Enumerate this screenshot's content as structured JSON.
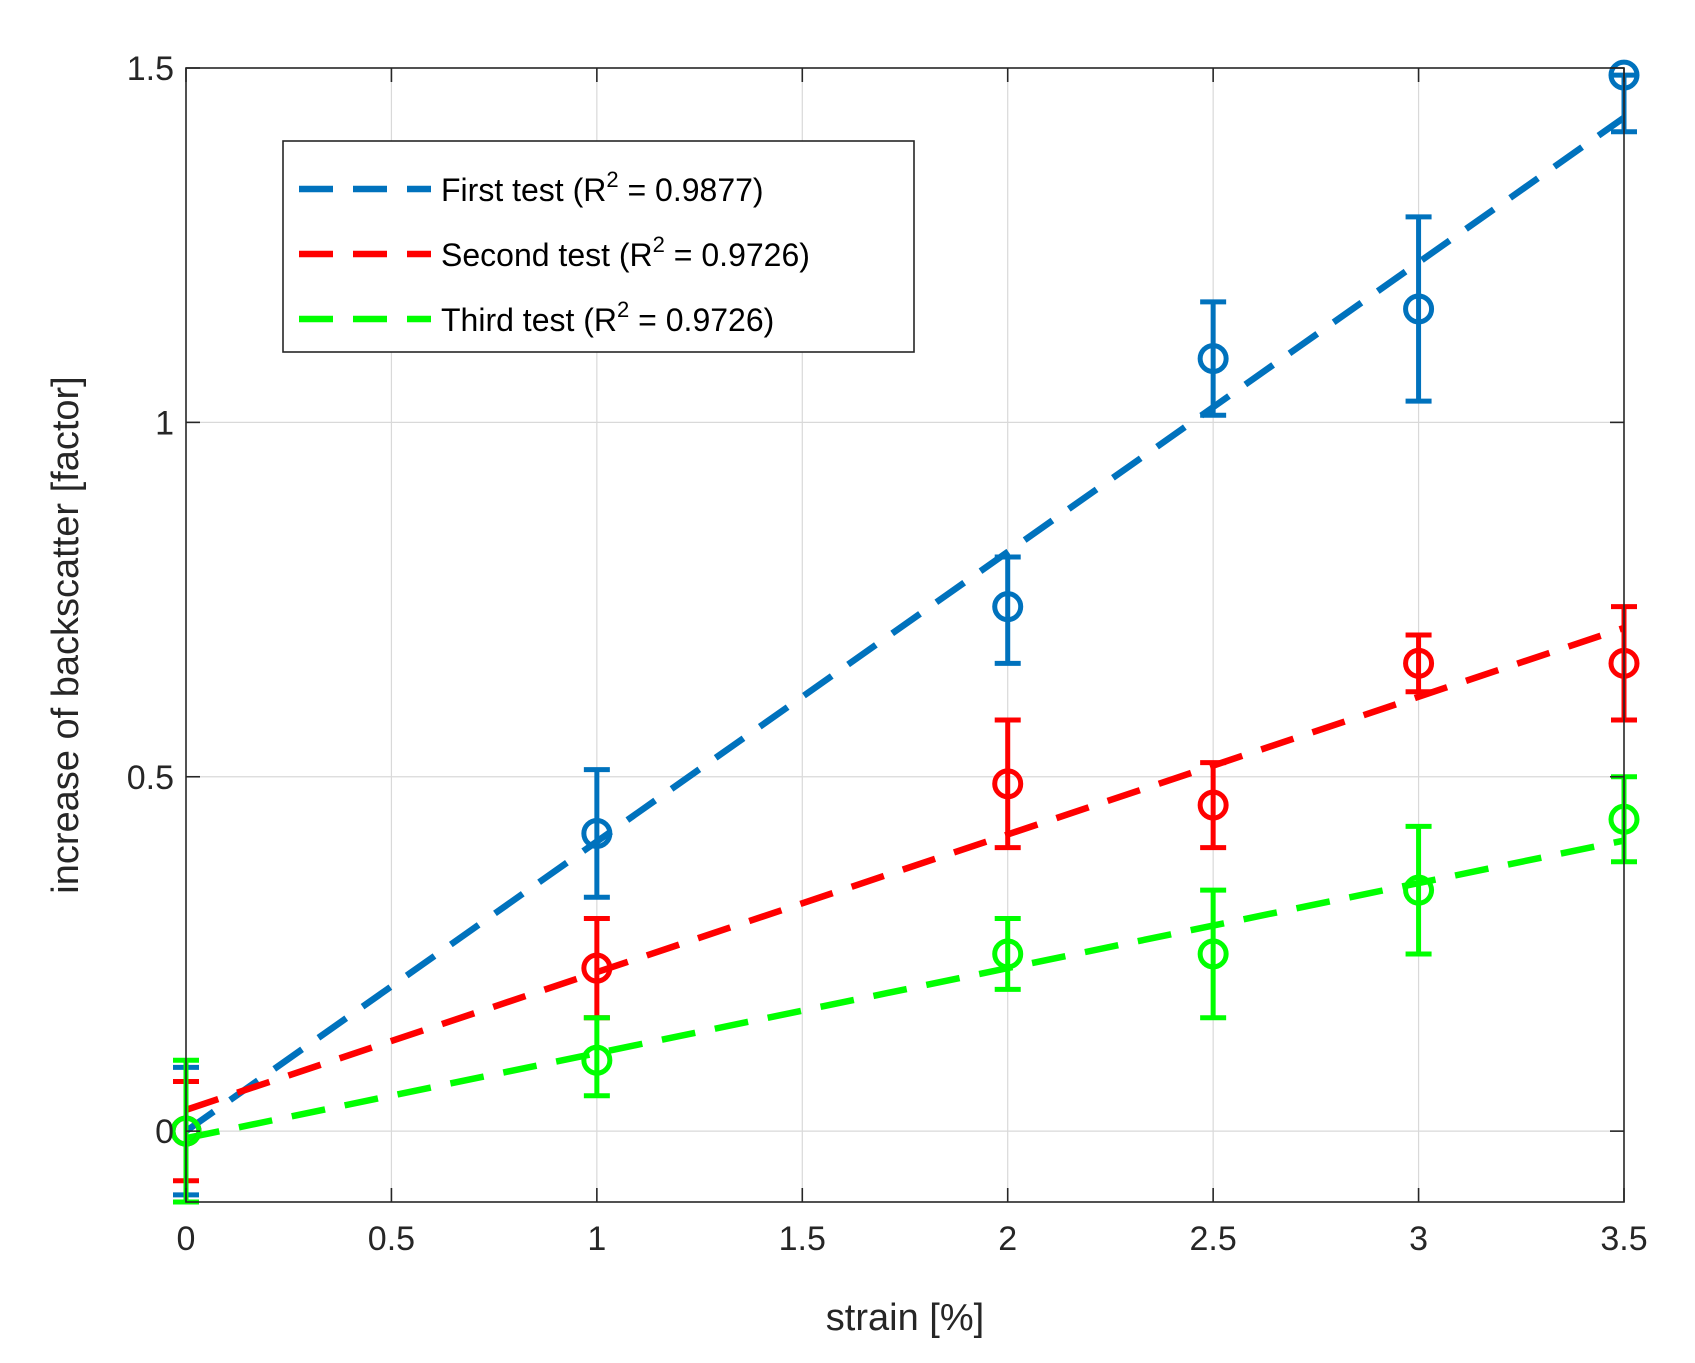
{
  "chart_data": {
    "type": "scatter",
    "title": "",
    "xlabel": "strain [%]",
    "ylabel": "increase of backscatter [factor]",
    "xlim": [
      0,
      3.5
    ],
    "ylim": [
      -0.1,
      1.5
    ],
    "grid": true,
    "legend_position": "top-left",
    "x_ticks": [
      0,
      0.5,
      1,
      1.5,
      2,
      2.5,
      3,
      3.5
    ],
    "x_tick_labels": [
      "0",
      "0.5",
      "1",
      "1.5",
      "2",
      "2.5",
      "3",
      "3.5"
    ],
    "y_ticks": [
      0,
      0.5,
      1,
      1.5
    ],
    "y_tick_labels": [
      "0",
      "0.5",
      "1",
      "1.5"
    ],
    "series": [
      {
        "name": "First test",
        "r2_label": "R",
        "r2_sup": "2",
        "r2_value": " = 0.9877)",
        "legend_prefix": "First test (",
        "color": "#0072BD",
        "x": [
          0,
          1,
          2,
          2.5,
          3,
          3.5
        ],
        "y": [
          0,
          0.42,
          0.74,
          1.09,
          1.16,
          1.49
        ],
        "err_low": [
          0.09,
          0.09,
          0.08,
          0.08,
          0.13,
          0.08
        ],
        "err_high": [
          0.09,
          0.09,
          0.07,
          0.08,
          0.13,
          0.0
        ],
        "fit": {
          "x0": 0,
          "y0": 0.0,
          "x1": 3.5,
          "y1": 1.43
        }
      },
      {
        "name": "Second test",
        "r2_label": "R",
        "r2_sup": "2",
        "r2_value": " = 0.9726)",
        "legend_prefix": "Second test (",
        "color": "#FF0000",
        "x": [
          0,
          1,
          2,
          2.5,
          3,
          3.5
        ],
        "y": [
          0,
          0.23,
          0.49,
          0.46,
          0.66,
          0.66
        ],
        "err_low": [
          0.07,
          0.07,
          0.09,
          0.06,
          0.04,
          0.08
        ],
        "err_high": [
          0.07,
          0.07,
          0.09,
          0.06,
          0.04,
          0.08
        ],
        "fit": {
          "x0": 0,
          "y0": 0.03,
          "x1": 3.5,
          "y1": 0.71
        }
      },
      {
        "name": "Third test",
        "r2_label": "R",
        "r2_sup": "2",
        "r2_value": " = 0.9726)",
        "legend_prefix": "Third test (",
        "color": "#00FF00",
        "x": [
          0,
          1,
          2,
          2.5,
          3,
          3.5
        ],
        "y": [
          0,
          0.1,
          0.25,
          0.25,
          0.34,
          0.44
        ],
        "err_low": [
          0.1,
          0.05,
          0.05,
          0.09,
          0.09,
          0.06
        ],
        "err_high": [
          0.1,
          0.06,
          0.05,
          0.09,
          0.09,
          0.06
        ],
        "fit": {
          "x0": 0,
          "y0": -0.01,
          "x1": 3.5,
          "y1": 0.41
        }
      }
    ]
  }
}
